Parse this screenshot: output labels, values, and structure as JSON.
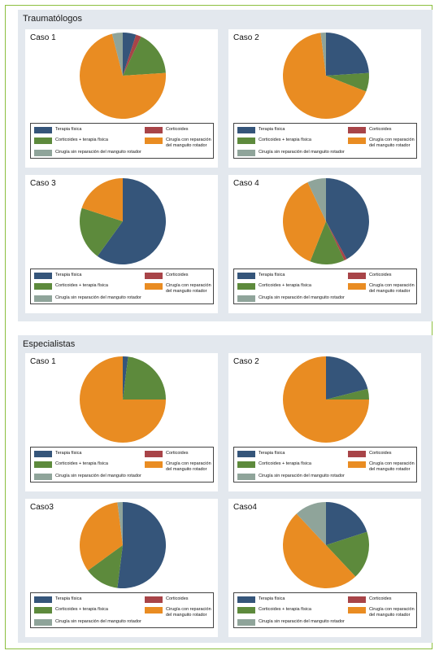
{
  "sections": [
    {
      "title": "Traumatólogos",
      "panels": [
        {
          "title": "Caso 1"
        },
        {
          "title": "Caso 2"
        },
        {
          "title": "Caso 3"
        },
        {
          "title": "Caso 4"
        }
      ]
    },
    {
      "title": "Especialistas",
      "panels": [
        {
          "title": "Caso 1"
        },
        {
          "title": "Caso 2"
        },
        {
          "title": "Caso3"
        },
        {
          "title": "Caso4"
        }
      ]
    }
  ],
  "legend": [
    {
      "label": "Terapia física",
      "color": "#35557a"
    },
    {
      "label": "Corticoides",
      "color": "#a84448"
    },
    {
      "label": "Corticoides + terapia física",
      "color": "#5d8a3c"
    },
    {
      "label": "Cirugía con reparación\ndel manguito rotador",
      "color": "#e98c22"
    },
    {
      "label": "Cirugía sin reparación del manguito rotador",
      "color": "#8fa49a"
    }
  ],
  "chart_data": [
    {
      "type": "pie",
      "group": "Traumatólogos",
      "title": "Caso 1",
      "labels": [
        "Terapia física",
        "Corticoides",
        "Corticoides + terapia física",
        "Cirugía con reparación del manguito rotador",
        "Cirugía sin reparación del manguito rotador"
      ],
      "values": [
        5,
        2,
        17,
        72,
        4
      ]
    },
    {
      "type": "pie",
      "group": "Traumatólogos",
      "title": "Caso 2",
      "labels": [
        "Terapia física",
        "Corticoides",
        "Corticoides + terapia física",
        "Cirugía con reparación del manguito rotador",
        "Cirugía sin reparación del manguito rotador"
      ],
      "values": [
        24,
        0,
        7,
        67,
        2
      ]
    },
    {
      "type": "pie",
      "group": "Traumatólogos",
      "title": "Caso 3",
      "labels": [
        "Terapia física",
        "Corticoides",
        "Corticoides + terapia física",
        "Cirugía con reparación del manguito rotador",
        "Cirugía sin reparación del manguito rotador"
      ],
      "values": [
        60,
        0,
        20,
        20,
        0
      ]
    },
    {
      "type": "pie",
      "group": "Traumatólogos",
      "title": "Caso 4",
      "labels": [
        "Terapia física",
        "Corticoides",
        "Corticoides + terapia física",
        "Cirugía con reparación del manguito rotador",
        "Cirugía sin reparación del manguito rotador"
      ],
      "values": [
        42,
        1,
        13,
        37,
        7
      ]
    },
    {
      "type": "pie",
      "group": "Especialistas",
      "title": "Caso 1",
      "labels": [
        "Terapia física",
        "Corticoides",
        "Corticoides + terapia física",
        "Cirugía con reparación del manguito rotador",
        "Cirugía sin reparación del manguito rotador"
      ],
      "values": [
        2,
        0,
        23,
        75,
        0
      ]
    },
    {
      "type": "pie",
      "group": "Especialistas",
      "title": "Caso2",
      "labels": [
        "Terapia física",
        "Corticoides",
        "Corticoides + terapia física",
        "Cirugía con reparación del manguito rotador",
        "Cirugía sin reparación del manguito rotador"
      ],
      "values": [
        21,
        0,
        4,
        75,
        0
      ]
    },
    {
      "type": "pie",
      "group": "Especialistas",
      "title": "Caso3",
      "labels": [
        "Terapia física",
        "Corticoides",
        "Corticoides + terapia física",
        "Cirugía con reparación del manguito rotador",
        "Cirugía sin reparación del manguito rotador"
      ],
      "values": [
        52,
        0,
        13,
        33,
        2
      ]
    },
    {
      "type": "pie",
      "group": "Especialistas",
      "title": "Caso4",
      "labels": [
        "Terapia física",
        "Corticoides",
        "Corticoides + terapia física",
        "Cirugía con reparación del manguito rotador",
        "Cirugía sin reparación del manguito rotador"
      ],
      "values": [
        20,
        0,
        18,
        50,
        12
      ]
    }
  ]
}
